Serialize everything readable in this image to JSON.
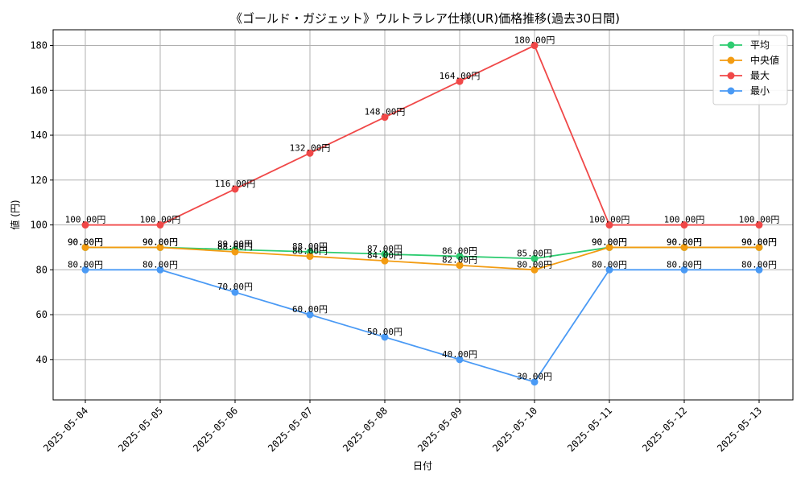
{
  "chart_data": {
    "type": "line",
    "title": "《ゴールド・ガジェット》ウルトラレア仕様(UR)価格推移(過去30日間)",
    "xlabel": "日付",
    "ylabel": "値 (円)",
    "categories": [
      "2025-05-04",
      "2025-05-05",
      "2025-05-06",
      "2025-05-07",
      "2025-05-08",
      "2025-05-09",
      "2025-05-10",
      "2025-05-11",
      "2025-05-12",
      "2025-05-13"
    ],
    "ylim": [
      22,
      187
    ],
    "yticks": [
      40,
      60,
      80,
      100,
      120,
      140,
      160,
      180
    ],
    "grid": true,
    "legend_position": "top-right",
    "value_suffix": "円",
    "series": [
      {
        "name": "平均",
        "color": "#2ecc71",
        "values": [
          90,
          90,
          89,
          88,
          87,
          86,
          85,
          90,
          90,
          90
        ]
      },
      {
        "name": "中央値",
        "color": "#f39c12",
        "values": [
          90,
          90,
          88,
          86,
          84,
          82,
          80,
          90,
          90,
          90
        ]
      },
      {
        "name": "最大",
        "color": "#f04848",
        "values": [
          100,
          100,
          116,
          132,
          148,
          164,
          180,
          100,
          100,
          100
        ]
      },
      {
        "name": "最小",
        "color": "#4a9af5",
        "values": [
          80,
          80,
          70,
          60,
          50,
          40,
          30,
          80,
          80,
          80
        ]
      }
    ]
  }
}
